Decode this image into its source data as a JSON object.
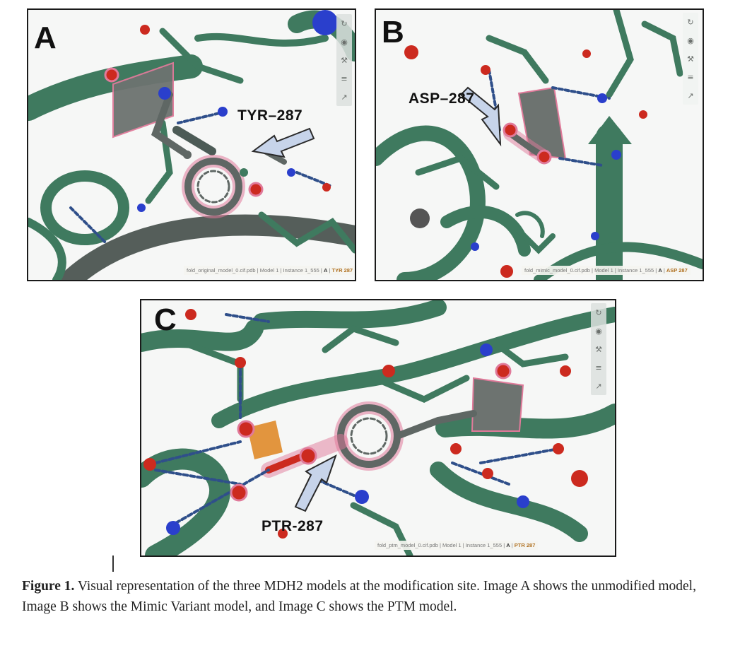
{
  "panels": {
    "a": {
      "letter": "A",
      "residue": "TYR–287",
      "status_file": "fold_original_model_0.cif.pdb",
      "status_model": "Model 1",
      "status_instance": "Instance 1_555",
      "status_chain": "A",
      "status_residue": "TYR 287"
    },
    "b": {
      "letter": "B",
      "residue": "ASP–287",
      "status_file": "fold_mimic_model_0.cif.pdb",
      "status_model": "Model 1",
      "status_instance": "Instance 1_555",
      "status_chain": "A",
      "status_residue": "ASP 287"
    },
    "c": {
      "letter": "C",
      "residue": "PTR-287",
      "status_file": "fold_ptm_model_0.cif.pdb",
      "status_model": "Model 1",
      "status_instance": "Instance 1_555",
      "status_chain": "A",
      "status_residue": "PTR 287"
    }
  },
  "toolbar_icons": [
    "refresh-icon",
    "camera-icon",
    "wrench-icon",
    "sliders-icon",
    "cursor-icon"
  ],
  "caption": {
    "label": "Figure 1.",
    "text": " Visual representation of the three MDH2 models at the modification site. Image A shows the unmodified model, Image B shows the Mimic Variant model, and Image C shows the PTM model."
  },
  "colors": {
    "protein": "#3f7a5f",
    "oxygen": "#cc2a1f",
    "nitrogen": "#2a3fcc",
    "phosphorus": "#e08a2a",
    "highlight": "#e07a9a"
  }
}
